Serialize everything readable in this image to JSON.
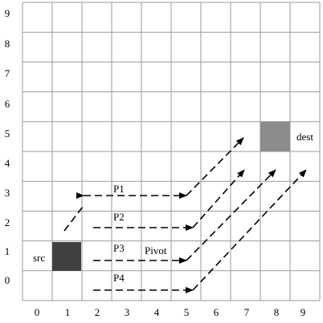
{
  "grid": {
    "cols": 10,
    "rows": 10
  },
  "axes": {
    "x_ticks": [
      "0",
      "1",
      "2",
      "3",
      "4",
      "5",
      "6",
      "7",
      "8",
      "9"
    ],
    "y_ticks": [
      "9",
      "8",
      "7",
      "6",
      "5",
      "4",
      "3",
      "2",
      "1",
      "0"
    ]
  },
  "nodes": {
    "src": {
      "label": "src",
      "color": "#404040"
    },
    "dest": {
      "label": "dest",
      "color": "#8c8c8c"
    }
  },
  "paths": [
    {
      "label": "P1"
    },
    {
      "label": "P2"
    },
    {
      "label": "P3"
    },
    {
      "label": "P4"
    }
  ],
  "pivot_label": "Pivot"
}
